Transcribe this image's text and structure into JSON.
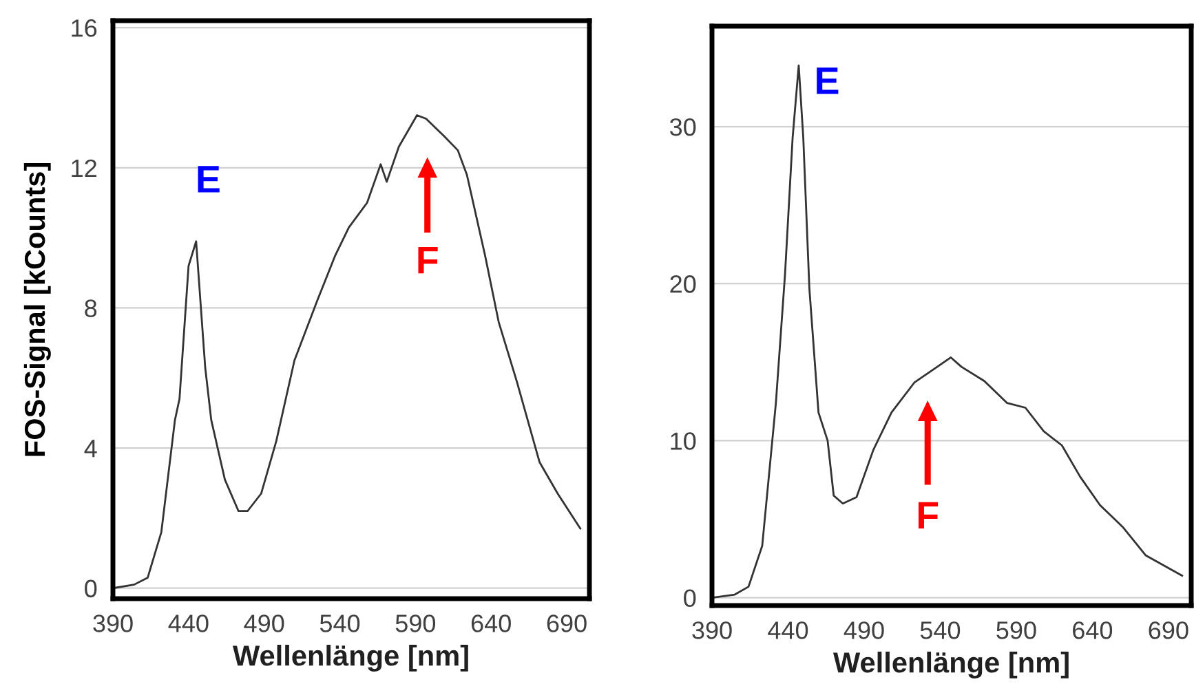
{
  "chart_data": [
    {
      "type": "line",
      "xlabel": "Wellenlänge [nm]",
      "ylabel": "FOS-Signal [kCounts]",
      "xlim": [
        390,
        705
      ],
      "ylim": [
        -0.3,
        16.2
      ],
      "xticks": [
        390,
        440,
        490,
        540,
        590,
        640,
        690
      ],
      "yticks": [
        0,
        4,
        8,
        12,
        16
      ],
      "grid": "y",
      "legend": false,
      "annotations": [
        "E",
        "F"
      ],
      "series": [
        {
          "color": "#333333",
          "x": [
            390,
            404,
            413,
            422,
            431,
            434,
            440,
            445,
            451,
            455,
            464,
            473,
            479,
            488,
            498,
            510,
            525,
            537,
            546,
            558,
            567,
            571,
            579,
            591,
            597,
            609,
            618,
            624,
            636,
            645,
            657,
            672,
            684,
            699
          ],
          "values": [
            0,
            0.1,
            0.3,
            1.6,
            4.8,
            5.4,
            9.2,
            9.9,
            6.3,
            4.8,
            3.1,
            2.2,
            2.2,
            2.7,
            4.2,
            6.5,
            8.2,
            9.5,
            10.3,
            11.0,
            12.1,
            11.6,
            12.6,
            13.5,
            13.4,
            12.9,
            12.5,
            11.8,
            9.5,
            7.6,
            5.9,
            3.6,
            2.7,
            1.7
          ]
        }
      ]
    },
    {
      "type": "line",
      "xlabel": "Wellenlänge [nm]",
      "xlim": [
        390,
        705
      ],
      "ylim": [
        -0.5,
        36.4
      ],
      "xticks": [
        390,
        440,
        490,
        540,
        590,
        640,
        690
      ],
      "yticks": [
        0,
        10,
        20,
        30
      ],
      "grid": "y",
      "legend": false,
      "annotations": [
        "E",
        "F"
      ],
      "series": [
        {
          "color": "#333333",
          "x": [
            390,
            405,
            414,
            423,
            432,
            438,
            443,
            447,
            450,
            454,
            460,
            466,
            470,
            476,
            485,
            496,
            508,
            523,
            538,
            547,
            554,
            569,
            584,
            596,
            608,
            620,
            632,
            645,
            660,
            675,
            699
          ],
          "values": [
            0,
            0.2,
            0.7,
            3.3,
            12.4,
            20.6,
            29.3,
            33.9,
            29.3,
            19.7,
            11.8,
            10.0,
            6.5,
            6.0,
            6.4,
            9.4,
            11.8,
            13.7,
            14.7,
            15.3,
            14.7,
            13.8,
            12.4,
            12.1,
            10.6,
            9.7,
            7.7,
            5.9,
            4.5,
            2.7,
            1.4
          ]
        }
      ]
    }
  ]
}
